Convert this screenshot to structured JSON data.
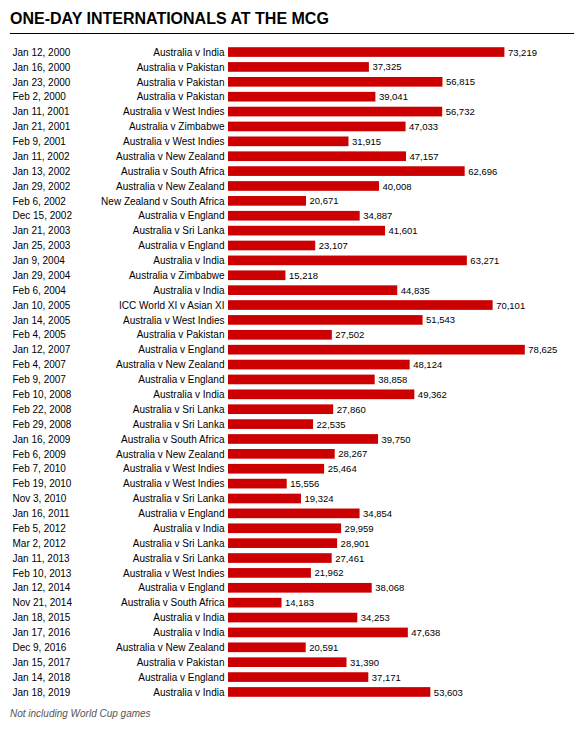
{
  "chart_data": {
    "type": "bar",
    "orientation": "horizontal",
    "title": "ONE-DAY INTERNATIONALS AT THE MCG",
    "caption": "Not including World Cup games",
    "color": "#cc0000",
    "tick_labels": false,
    "data_labels": true,
    "xlim": [
      0,
      80000
    ],
    "categories": [
      "Jan 12, 2000",
      "Jan 16, 2000",
      "Jan 23, 2000",
      "Feb 2, 2000",
      "Jan 11, 2001",
      "Jan 21, 2001",
      "Feb 9, 2001",
      "Jan 11, 2002",
      "Jan 13, 2002",
      "Jan 29, 2002",
      "Feb 6, 2002",
      "Dec 15, 2002",
      "Jan 21, 2003",
      "Jan 25, 2003",
      "Jan 9, 2004",
      "Jan 29, 2004",
      "Feb 6, 2004",
      "Jan 10, 2005",
      "Jan 14, 2005",
      "Feb 4, 2005",
      "Jan 12, 2007",
      "Feb 4, 2007",
      "Feb 9, 2007",
      "Feb 10, 2008",
      "Feb 22, 2008",
      "Feb 29, 2008",
      "Jan 16, 2009",
      "Feb 6, 2009",
      "Feb 7, 2010",
      "Feb 19, 2010",
      "Nov 3, 2010",
      "Jan 16, 2011",
      "Feb 5, 2012",
      "Mar 2, 2012",
      "Jan 11, 2013",
      "Feb 10, 2013",
      "Jan 12, 2014",
      "Nov 21, 2014",
      "Jan 18, 2015",
      "Jan 17, 2016",
      "Dec 9, 2016",
      "Jan 15, 2017",
      "Jan 14, 2018",
      "Jan 18, 2019"
    ],
    "matches": [
      "Australia v India",
      "Australia v Pakistan",
      "Australia v Pakistan",
      "Australia v Pakistan",
      "Australia v West Indies",
      "Australia v Zimbabwe",
      "Australia v West Indies",
      "Australia v New Zealand",
      "Australia v South Africa",
      "Australia v New Zealand",
      "New Zealand v South Africa",
      "Australia v England",
      "Australia v Sri Lanka",
      "Australia v England",
      "Australia v India",
      "Australia v Zimbabwe",
      "Australia v India",
      "ICC World XI v Asian XI",
      "Australia v West Indies",
      "Australia v Pakistan",
      "Australia v England",
      "Australia v New Zealand",
      "Australia v England",
      "Australia v India",
      "Australia v Sri Lanka",
      "Australia v Sri Lanka",
      "Australia v South Africa",
      "Australia v New Zealand",
      "Australia v West Indies",
      "Australia v West Indies",
      "Australia v Sri Lanka",
      "Australia v England",
      "Australia v India",
      "Australia v Sri Lanka",
      "Australia v Sri Lanka",
      "Australia v West Indies",
      "Australia v England",
      "Australia v South Africa",
      "Australia v India",
      "Australia v India",
      "Australia v New Zealand",
      "Australia v Pakistan",
      "Australia v England",
      "Australia v India"
    ],
    "values": [
      73219,
      37325,
      56815,
      39041,
      56732,
      47033,
      31915,
      47157,
      62696,
      40008,
      20671,
      34887,
      41601,
      23107,
      63271,
      15218,
      44835,
      70101,
      51543,
      27502,
      78625,
      48124,
      38858,
      49362,
      27860,
      22535,
      39750,
      28267,
      25464,
      15556,
      19324,
      34854,
      29959,
      28901,
      27461,
      21962,
      38068,
      14183,
      34253,
      47638,
      20591,
      31390,
      37171,
      53603
    ],
    "value_labels": [
      "73,219",
      "37,325",
      "56,815",
      "39,041",
      "56,732",
      "47,033",
      "31,915",
      "47,157",
      "62,696",
      "40,008",
      "20,671",
      "34,887",
      "41,601",
      "23,107",
      "63,271",
      "15,218",
      "44,835",
      "70,101",
      "51,543",
      "27,502",
      "78,625",
      "48,124",
      "38,858",
      "49,362",
      "27,860",
      "22,535",
      "39,750",
      "28,267",
      "25,464",
      "15,556",
      "19,324",
      "34,854",
      "29,959",
      "28,901",
      "27,461",
      "21,962",
      "38,068",
      "14,183",
      "34,253",
      "47,638",
      "20,591",
      "31,390",
      "37,171",
      "53,603"
    ]
  }
}
